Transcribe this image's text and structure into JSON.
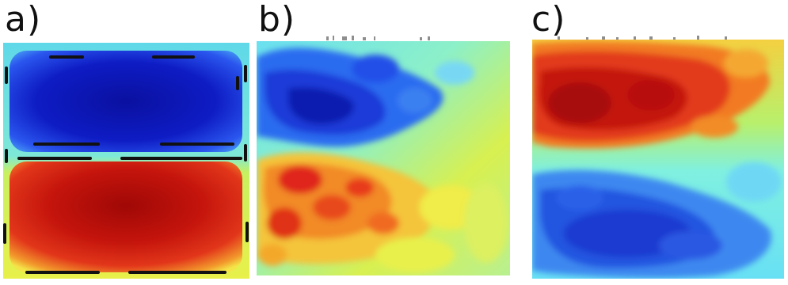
{
  "panels": [
    {
      "id": "a",
      "label": "a)"
    },
    {
      "id": "b",
      "label": "b)"
    },
    {
      "id": "c",
      "label": "c)"
    }
  ],
  "colors": {
    "deep_blue": "#0a14b4",
    "blue": "#2a5cf0",
    "cyan": "#5de6f0",
    "green_yellow": "#c4f24a",
    "yellow": "#f5f04a",
    "orange": "#f2a02a",
    "red": "#e0221a",
    "dark_red": "#a80a08",
    "outline": "#111111"
  }
}
